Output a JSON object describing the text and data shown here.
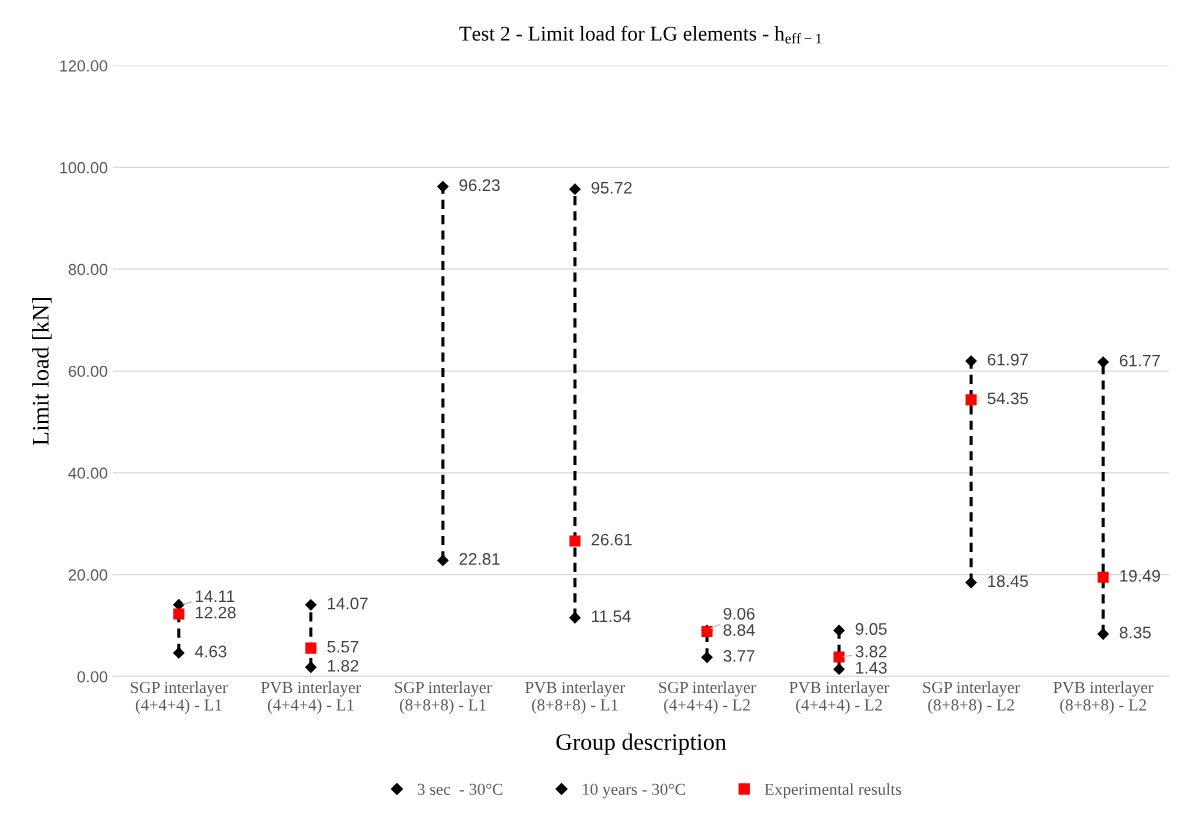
{
  "chart_data": {
    "type": "scatter",
    "title": "Test 2 - Limit load for LG elements - h$_{eff−1}$",
    "xlabel": "Group description",
    "ylabel": "Limit load [kN]",
    "categories": [
      "SGP interlayer\n(4+4+4) - L1",
      "PVB interlayer\n(4+4+4) - L1",
      "SGP interlayer\n(8+8+8) - L1",
      "PVB interlayer\n(8+8+8) - L1",
      "SGP interlayer\n(4+4+4) - L2",
      "PVB interlayer\n(4+4+4) - L2",
      "SGP interlayer\n(8+8+8) - L2",
      "PVB interlayer\n(8+8+8) - L2"
    ],
    "series": [
      {
        "name": "3 sec  - 30°C",
        "color": "#000000",
        "marker": "diamond",
        "values": [
          14.11,
          14.07,
          96.23,
          95.72,
          9.06,
          9.05,
          61.97,
          61.77
        ]
      },
      {
        "name": "10 years - 30°C",
        "color": "#000000",
        "marker": "diamond",
        "values": [
          4.63,
          1.82,
          22.81,
          11.54,
          3.77,
          1.43,
          18.45,
          8.35
        ]
      },
      {
        "name": "Experimental results",
        "color": "#ff0000",
        "marker": "square",
        "values": [
          12.28,
          5.57,
          null,
          26.61,
          8.84,
          3.82,
          54.35,
          19.49
        ]
      }
    ],
    "ylim": [
      0,
      120
    ],
    "yticks": [
      {
        "value": 0,
        "label": "0.00"
      },
      {
        "value": 20,
        "label": "20.00"
      },
      {
        "value": 40,
        "label": "40.00"
      },
      {
        "value": 60,
        "label": "60.00"
      },
      {
        "value": 80,
        "label": "80.00"
      },
      {
        "value": 100,
        "label": "100.00"
      },
      {
        "value": 120,
        "label": "120.00"
      }
    ],
    "grid": "y",
    "legend": "bottom",
    "line_style": "dashed",
    "data_labels": true
  }
}
